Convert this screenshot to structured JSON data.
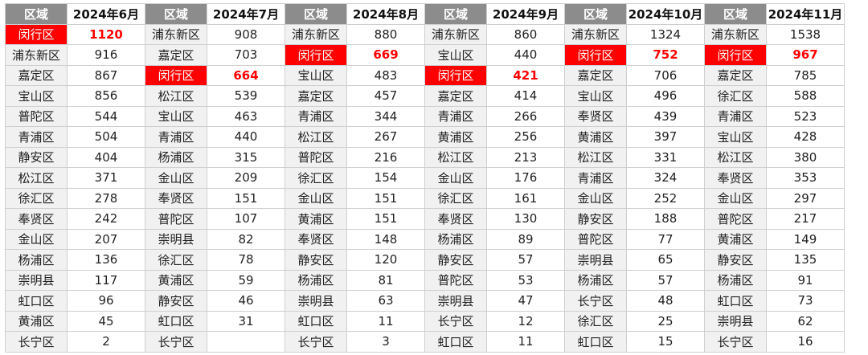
{
  "header": {
    "region_label": "区域",
    "months": [
      "2024年6月",
      "2024年7月",
      "2024年8月",
      "2024年9月",
      "2024年10月",
      "2024年11月"
    ]
  },
  "colors": {
    "highlight_bg": "#ff0000",
    "highlight_text": "#ff0000",
    "header_bg": "#8c8c8c"
  },
  "highlight_region": "闵行区",
  "columns": [
    {
      "regions": [
        "闵行区",
        "浦东新区",
        "嘉定区",
        "宝山区",
        "普陀区",
        "青浦区",
        "静安区",
        "松江区",
        "徐汇区",
        "奉贤区",
        "金山区",
        "杨浦区",
        "崇明县",
        "虹口区",
        "黄浦区",
        "长宁区"
      ],
      "values": [
        "1120",
        "916",
        "867",
        "856",
        "544",
        "504",
        "404",
        "371",
        "278",
        "242",
        "207",
        "136",
        "117",
        "96",
        "45",
        "2"
      ]
    },
    {
      "regions": [
        "浦东新区",
        "嘉定区",
        "闵行区",
        "松江区",
        "宝山区",
        "青浦区",
        "杨浦区",
        "金山区",
        "奉贤区",
        "普陀区",
        "崇明县",
        "徐汇区",
        "黄浦区",
        "静安区",
        "虹口区",
        "长宁区"
      ],
      "values": [
        "908",
        "703",
        "664",
        "539",
        "463",
        "440",
        "315",
        "209",
        "151",
        "107",
        "82",
        "78",
        "59",
        "46",
        "31",
        ""
      ]
    },
    {
      "regions": [
        "浦东新区",
        "闵行区",
        "宝山区",
        "嘉定区",
        "青浦区",
        "松江区",
        "普陀区",
        "徐汇区",
        "金山区",
        "黄浦区",
        "奉贤区",
        "静安区",
        "杨浦区",
        "崇明县",
        "虹口区",
        "长宁区"
      ],
      "values": [
        "880",
        "669",
        "483",
        "457",
        "344",
        "267",
        "216",
        "154",
        "151",
        "151",
        "148",
        "120",
        "81",
        "63",
        "11",
        "3"
      ]
    },
    {
      "regions": [
        "浦东新区",
        "宝山区",
        "闵行区",
        "嘉定区",
        "青浦区",
        "黄浦区",
        "松江区",
        "金山区",
        "徐汇区",
        "奉贤区",
        "杨浦区",
        "静安区",
        "普陀区",
        "崇明县",
        "长宁区",
        "虹口区"
      ],
      "values": [
        "860",
        "440",
        "421",
        "414",
        "266",
        "256",
        "213",
        "176",
        "161",
        "130",
        "89",
        "57",
        "53",
        "47",
        "12",
        "11"
      ]
    },
    {
      "regions": [
        "浦东新区",
        "闵行区",
        "嘉定区",
        "宝山区",
        "奉贤区",
        "黄浦区",
        "松江区",
        "青浦区",
        "金山区",
        "静安区",
        "普陀区",
        "崇明县",
        "杨浦区",
        "长宁区",
        "徐汇区",
        "虹口区"
      ],
      "values": [
        "1324",
        "752",
        "706",
        "496",
        "439",
        "397",
        "331",
        "324",
        "252",
        "188",
        "77",
        "65",
        "57",
        "48",
        "25",
        "15"
      ]
    },
    {
      "regions": [
        "浦东新区",
        "闵行区",
        "嘉定区",
        "徐汇区",
        "青浦区",
        "宝山区",
        "松江区",
        "奉贤区",
        "金山区",
        "普陀区",
        "黄浦区",
        "静安区",
        "杨浦区",
        "虹口区",
        "崇明县",
        "长宁区"
      ],
      "values": [
        "1538",
        "967",
        "785",
        "588",
        "523",
        "428",
        "380",
        "353",
        "297",
        "217",
        "149",
        "135",
        "91",
        "73",
        "62",
        "16"
      ]
    }
  ]
}
